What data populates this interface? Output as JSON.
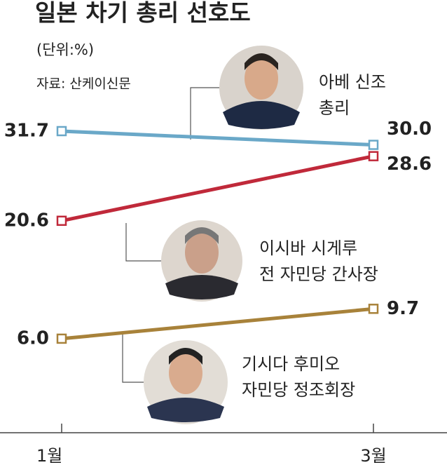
{
  "chart_data": {
    "type": "line",
    "title": "일본 차기 총리 선호도",
    "subtitle": "(단위:%)",
    "source": "자료: 산케이신문",
    "categories": [
      "1월",
      "3월"
    ],
    "ylim": [
      0,
      33
    ],
    "series": [
      {
        "name": "아베 신조",
        "role": "총리",
        "color": "#6aa8c8",
        "values": [
          31.7,
          30.0
        ],
        "value_labels": [
          "31.7",
          "30.0"
        ]
      },
      {
        "name": "이시바 시게루",
        "role": "전 자민당 간사장",
        "color": "#c0293a",
        "values": [
          20.6,
          28.6
        ],
        "value_labels": [
          "20.6",
          "28.6"
        ]
      },
      {
        "name": "기시다 후미오",
        "role": "자민당 정조회장",
        "color": "#a8823a",
        "values": [
          6.0,
          9.7
        ],
        "value_labels": [
          "6.0",
          "9.7"
        ]
      }
    ]
  }
}
